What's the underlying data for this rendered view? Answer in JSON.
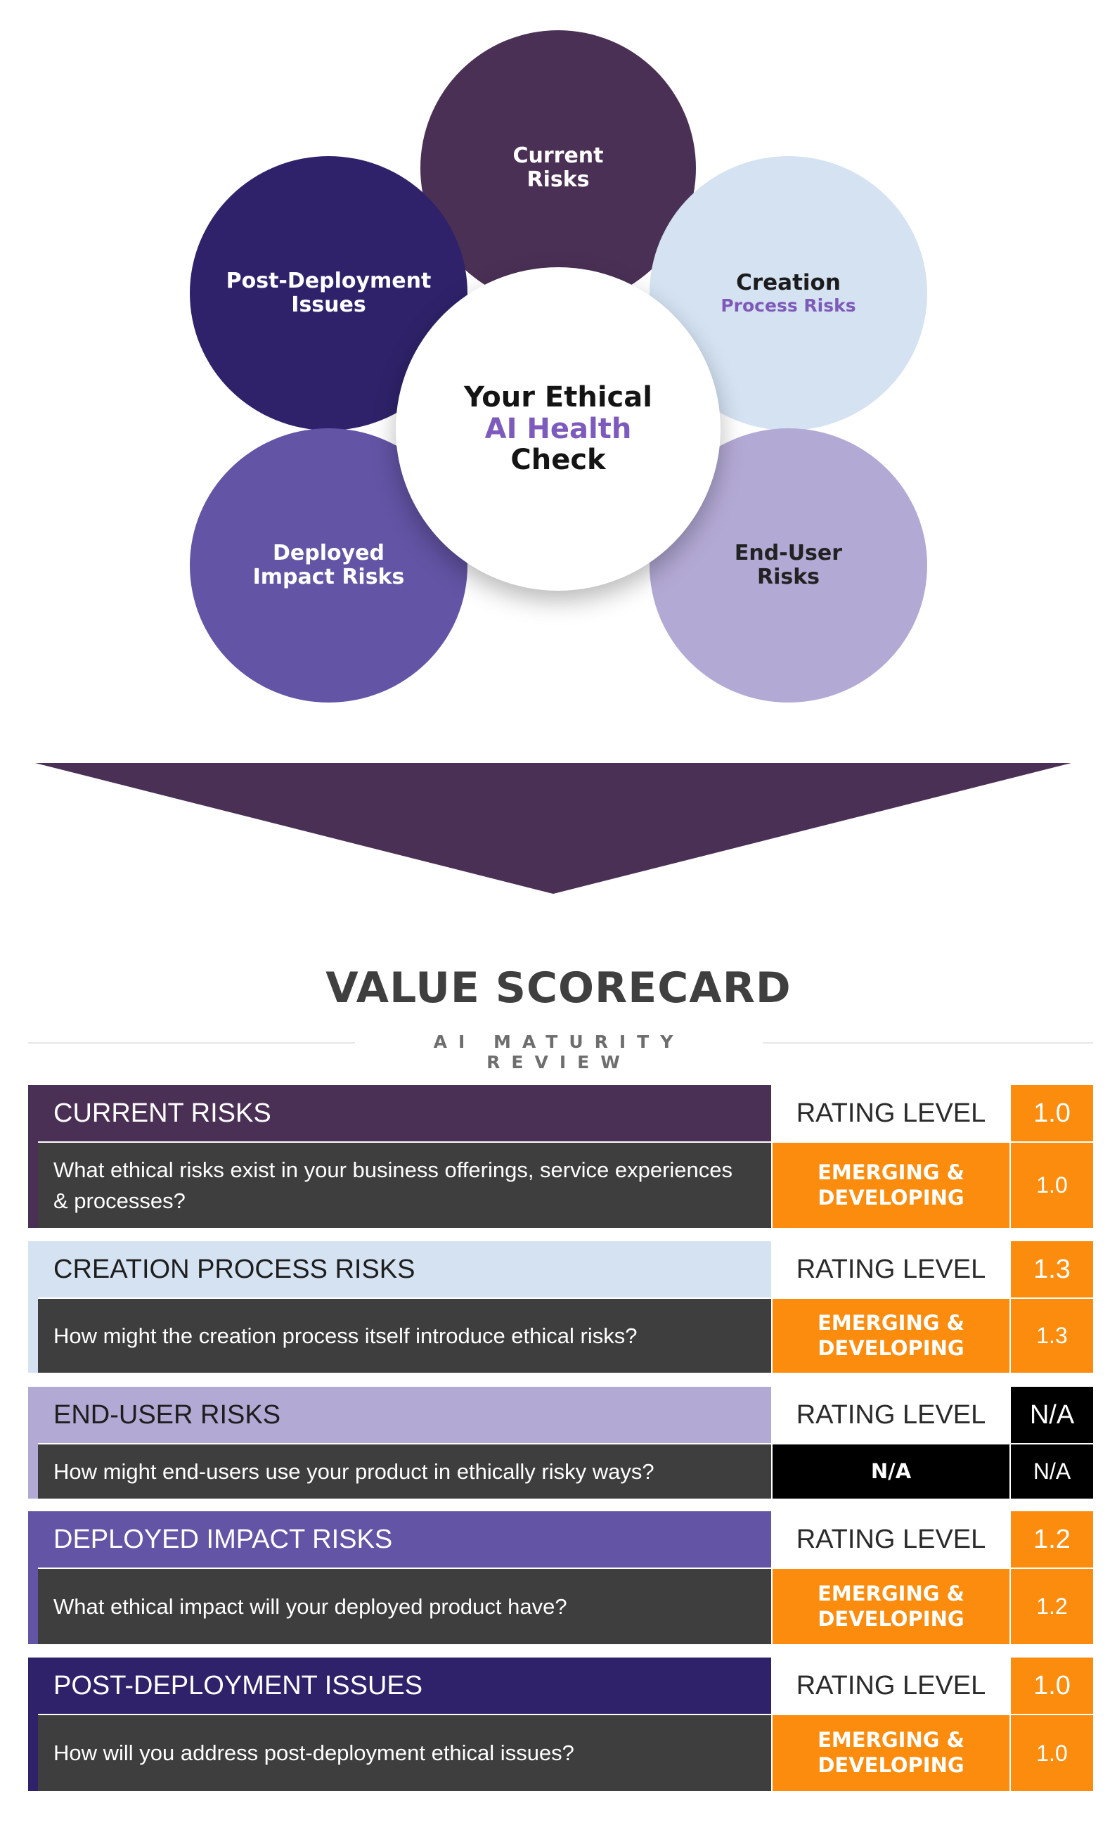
{
  "diagram": {
    "center": {
      "line1": "Your Ethical",
      "line2": "AI Health",
      "line3": "Check"
    },
    "current": {
      "line1": "Current",
      "line2": "Risks"
    },
    "creation": {
      "line1": "Creation",
      "line2": "Process Risks"
    },
    "enduser": {
      "line1": "End-User",
      "line2": "Risks"
    },
    "deployed": {
      "line1": "Deployed",
      "line2": "Impact Risks"
    },
    "post": {
      "line1": "Post-Deployment",
      "line2": "Issues"
    }
  },
  "scorecard": {
    "title": "VALUE SCORECARD",
    "subtitle": "AI MATURITY REVIEW",
    "sections": [
      {
        "label": "CURRENT RISKS",
        "rating_label": "RATING LEVEL",
        "score": "1.0",
        "question": "What ethical risks exist in your business offerings, service experiences & processes?",
        "rating_line1": "EMERGING &",
        "rating_line2": "DEVELOPING",
        "q_score": "1.0",
        "color": "#4b3055"
      },
      {
        "label": "CREATION PROCESS RISKS",
        "rating_label": "RATING LEVEL",
        "score": "1.3",
        "question": "How might the creation process itself introduce ethical risks?",
        "rating_line1": "EMERGING &",
        "rating_line2": "DEVELOPING",
        "q_score": "1.3",
        "color": "#d4e2f2"
      },
      {
        "label": "END-USER RISKS",
        "rating_label": "RATING LEVEL",
        "score": "N/A",
        "question": "How might end-users use your product in ethically risky ways?",
        "rating_line1": "N/A",
        "rating_line2": "",
        "q_score": "N/A",
        "color": "#b3a9d5"
      },
      {
        "label": "DEPLOYED IMPACT RISKS",
        "rating_label": "RATING LEVEL",
        "score": "1.2",
        "question": "What ethical impact will your deployed product have?",
        "rating_line1": "EMERGING &",
        "rating_line2": "DEVELOPING",
        "q_score": "1.2",
        "color": "#6354a5"
      },
      {
        "label": "POST-DEPLOYMENT ISSUES",
        "rating_label": "RATING LEVEL",
        "score": "1.0",
        "question": "How will you address post-deployment ethical issues?",
        "rating_line1": "EMERGING &",
        "rating_line2": "DEVELOPING",
        "q_score": "1.0",
        "color": "#2f226a"
      }
    ]
  }
}
